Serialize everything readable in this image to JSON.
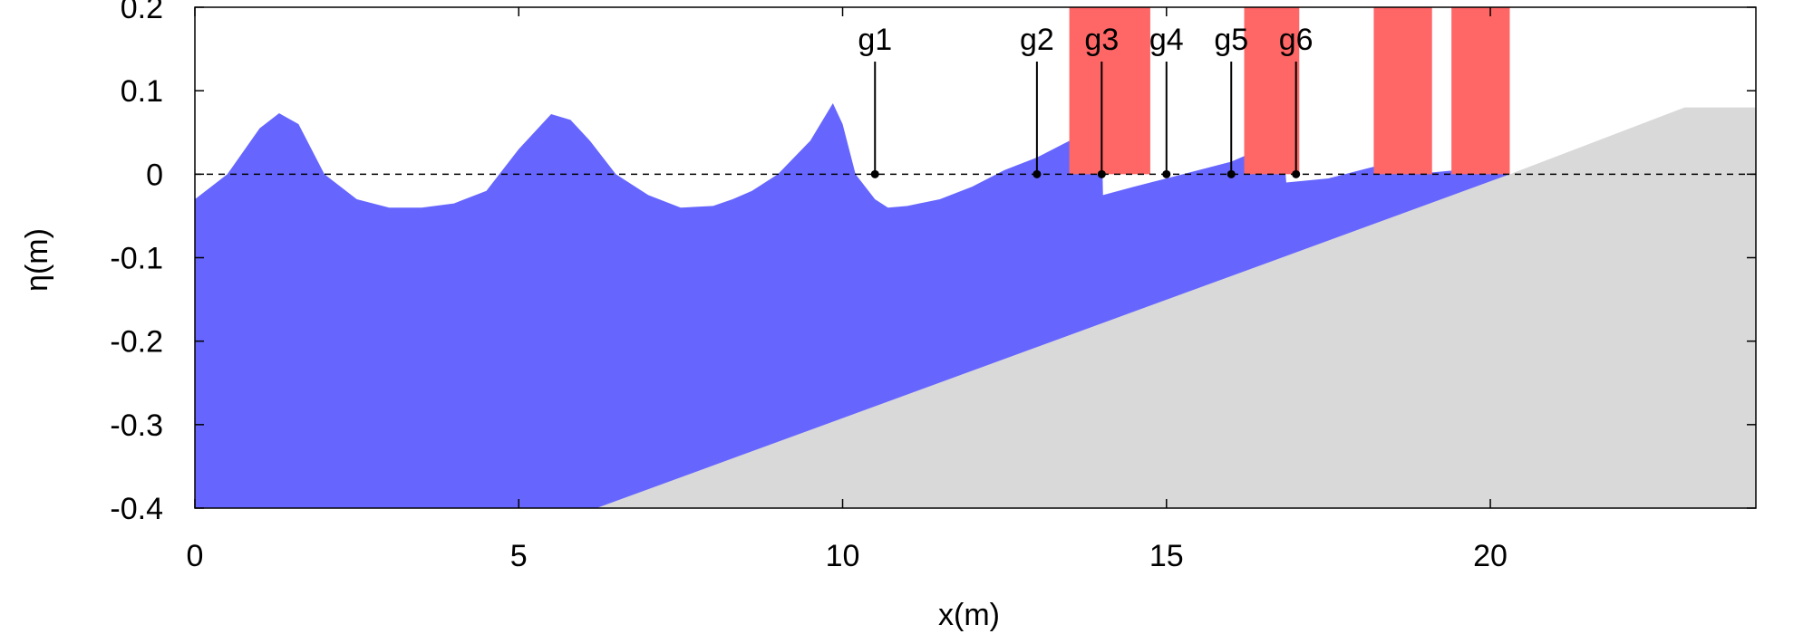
{
  "chart_data": {
    "type": "area",
    "xlabel": "x(m)",
    "ylabel": "η(m)",
    "xlim": [
      0,
      24.1
    ],
    "ylim": [
      -0.4,
      0.2
    ],
    "x_ticks": [
      0,
      5,
      10,
      15,
      20
    ],
    "x_tick_labels": [
      "0",
      "5",
      "10",
      "15",
      "20"
    ],
    "y_ticks": [
      0.2,
      0.1,
      0,
      -0.1,
      -0.2,
      -0.3,
      -0.4
    ],
    "y_tick_labels": [
      "0.2",
      "0.1",
      "0",
      "-0.1",
      "-0.2",
      "-0.3",
      "-0.4"
    ],
    "grid": false,
    "still_water_level": 0,
    "colors": {
      "water": "#6666ff",
      "bed": "#d9d9d9",
      "breaking": "#ff6666",
      "axis": "#000000"
    },
    "free_surface": {
      "x": [
        0,
        0.5,
        1.0,
        1.3,
        1.6,
        2.0,
        2.5,
        3.0,
        3.5,
        4.0,
        4.5,
        5.0,
        5.5,
        5.8,
        6.1,
        6.5,
        7.0,
        7.5,
        8.0,
        8.3,
        8.6,
        9.0,
        9.5,
        9.85,
        10.0,
        10.2,
        10.5,
        10.7,
        11.0,
        11.5,
        12.0,
        12.5,
        13.0,
        13.5,
        13.8,
        14.0,
        14.02,
        14.5,
        15.0,
        15.5,
        16.0,
        16.3,
        16.6,
        16.8,
        16.85,
        17.5,
        18.0,
        18.5,
        18.7,
        18.8,
        19.5,
        19.8,
        20.0,
        20.3
      ],
      "y": [
        -0.03,
        0.0,
        0.055,
        0.073,
        0.06,
        0.0,
        -0.03,
        -0.04,
        -0.04,
        -0.035,
        -0.02,
        0.03,
        0.072,
        0.065,
        0.04,
        0.0,
        -0.025,
        -0.04,
        -0.038,
        -0.03,
        -0.02,
        0.0,
        0.04,
        0.085,
        0.06,
        0.0,
        -0.03,
        -0.04,
        -0.038,
        -0.03,
        -0.015,
        0.005,
        0.02,
        0.04,
        0.05,
        0.05,
        -0.025,
        -0.015,
        -0.005,
        0.005,
        0.015,
        0.025,
        0.035,
        0.035,
        -0.01,
        -0.005,
        0.005,
        0.015,
        0.02,
        0.0,
        0.005,
        0.01,
        0.003,
        0.002
      ]
    },
    "bathymetry": {
      "x": [
        0,
        6.2,
        20.3,
        23.0,
        24.1
      ],
      "y": [
        -0.4,
        -0.4,
        0.0,
        0.08,
        0.08
      ]
    },
    "breaking_zones": [
      {
        "x0": 13.5,
        "x1": 14.75
      },
      {
        "x0": 16.2,
        "x1": 17.05
      },
      {
        "x0": 18.2,
        "x1": 19.1
      },
      {
        "x0": 19.4,
        "x1": 20.3
      }
    ],
    "gauges": [
      {
        "name": "g1",
        "x": 10.5
      },
      {
        "name": "g2",
        "x": 13.0
      },
      {
        "name": "g3",
        "x": 14.0
      },
      {
        "name": "g4",
        "x": 15.0
      },
      {
        "name": "g5",
        "x": 16.0
      },
      {
        "name": "g6",
        "x": 17.0
      }
    ]
  }
}
